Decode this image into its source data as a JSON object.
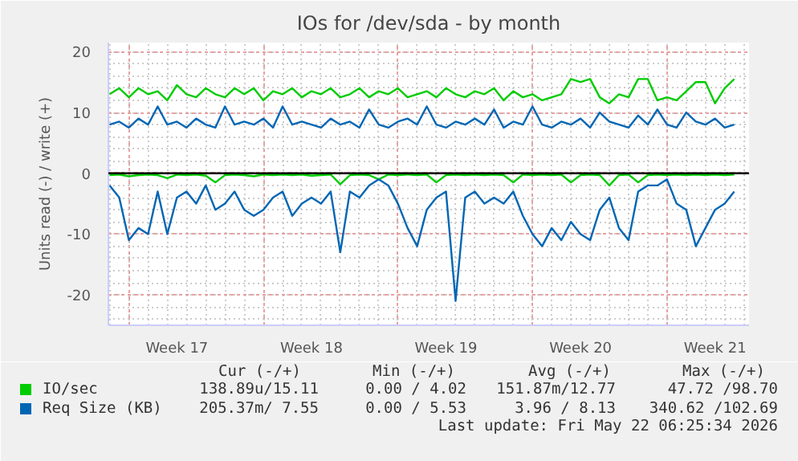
{
  "chart_data": {
    "type": "line",
    "title": "IOs for /dev/sda - by month",
    "ylabel": "Units read (-) / write (+)",
    "x": [
      "2026-04-19T00:00",
      "2026-04-19T12:00",
      "2026-04-20T00:00",
      "2026-04-20T12:00",
      "2026-04-21T00:00",
      "2026-04-21T12:00",
      "2026-04-22T00:00",
      "2026-04-22T12:00",
      "2026-04-23T00:00",
      "2026-04-23T12:00",
      "2026-04-24T00:00",
      "2026-04-24T12:00",
      "2026-04-25T00:00",
      "2026-04-25T12:00",
      "2026-04-26T00:00",
      "2026-04-26T12:00",
      "2026-04-27T00:00",
      "2026-04-27T12:00",
      "2026-04-28T00:00",
      "2026-04-28T12:00",
      "2026-04-29T00:00",
      "2026-04-29T12:00",
      "2026-04-30T00:00",
      "2026-04-30T12:00",
      "2026-05-01T00:00",
      "2026-05-01T12:00",
      "2026-05-02T00:00",
      "2026-05-02T12:00",
      "2026-05-03T00:00",
      "2026-05-03T12:00",
      "2026-05-04T00:00",
      "2026-05-04T12:00",
      "2026-05-05T00:00",
      "2026-05-05T12:00",
      "2026-05-06T00:00",
      "2026-05-06T12:00",
      "2026-05-07T00:00",
      "2026-05-07T12:00",
      "2026-05-08T00:00",
      "2026-05-08T12:00",
      "2026-05-09T00:00",
      "2026-05-09T12:00",
      "2026-05-10T00:00",
      "2026-05-10T12:00",
      "2026-05-11T00:00",
      "2026-05-11T12:00",
      "2026-05-12T00:00",
      "2026-05-12T12:00",
      "2026-05-13T00:00",
      "2026-05-13T12:00",
      "2026-05-14T00:00",
      "2026-05-14T12:00",
      "2026-05-15T00:00",
      "2026-05-15T12:00",
      "2026-05-16T00:00",
      "2026-05-16T12:00",
      "2026-05-17T00:00",
      "2026-05-17T12:00",
      "2026-05-18T00:00",
      "2026-05-18T12:00",
      "2026-05-19T00:00",
      "2026-05-19T12:00",
      "2026-05-20T00:00",
      "2026-05-20T12:00",
      "2026-05-21T00:00",
      "2026-05-21T12:00"
    ],
    "series": [
      {
        "name": "IO/sec",
        "color": "#00cc00",
        "values": [
          13,
          14,
          12.5,
          14,
          13,
          13.5,
          12,
          14.5,
          13,
          12.5,
          14,
          13,
          12.5,
          14,
          13,
          14,
          12,
          13.5,
          13,
          14,
          12.5,
          13.5,
          13,
          14,
          12.5,
          13,
          14,
          12.5,
          13.5,
          13,
          14,
          12.5,
          13,
          13.5,
          12.5,
          14,
          13,
          12.5,
          13.5,
          13,
          14,
          12,
          13.5,
          12.5,
          13,
          12,
          12.5,
          13,
          15.5,
          15,
          15.5,
          12.5,
          11.5,
          13,
          12.5,
          15.5,
          15.5,
          12,
          12.5,
          12,
          13.5,
          15,
          15,
          11.5,
          14,
          15.5
        ]
      },
      {
        "color": "#00cc00",
        "values": [
          -0.3,
          -0.2,
          -0.5,
          -0.3,
          -0.2,
          -0.3,
          -0.8,
          -0.2,
          -0.3,
          -0.2,
          -0.4,
          -1.5,
          -0.3,
          -0.2,
          -0.3,
          -0.5,
          -0.2,
          -0.3,
          -0.2,
          -0.3,
          -0.2,
          -0.4,
          -0.3,
          -0.2,
          -1.8,
          -0.3,
          -0.2,
          -0.3,
          -1,
          -0.2,
          -0.3,
          -0.2,
          -0.3,
          -0.2,
          -1.5,
          -0.3,
          -0.2,
          -0.3,
          -0.2,
          -0.3,
          -0.2,
          -0.3,
          -1.5,
          -0.2,
          -0.3,
          -0.2,
          -0.3,
          -0.2,
          -1.5,
          -0.3,
          -0.2,
          -0.3,
          -2,
          -0.3,
          -0.2,
          -1.5,
          -0.3,
          -0.2,
          -0.3,
          -0.2,
          -0.3,
          -0.2,
          -0.3,
          -0.2,
          -0.3,
          -0.2
        ]
      },
      {
        "name": "Req Size (KB)",
        "color": "#0066b3",
        "values": [
          8,
          8.5,
          7.5,
          9,
          8,
          11,
          8,
          8.5,
          7.5,
          9,
          8,
          7.5,
          11,
          8,
          8.5,
          8,
          9,
          7.5,
          11,
          8,
          8.5,
          8,
          7.5,
          9,
          8,
          8.5,
          7.5,
          10.5,
          8,
          7.5,
          8.5,
          9,
          8,
          11,
          8,
          7.5,
          8.5,
          8,
          9,
          8,
          10.5,
          7.5,
          8.5,
          8,
          11,
          8,
          7.5,
          8.5,
          8,
          9,
          7.5,
          10,
          8.5,
          8,
          7.5,
          9.5,
          8,
          10.5,
          8,
          7.5,
          10,
          8.5,
          8,
          9,
          7.5,
          8
        ]
      },
      {
        "color": "#0066b3",
        "values": [
          -2,
          -4,
          -11,
          -9,
          -10,
          -3,
          -10,
          -4,
          -3,
          -5,
          -2,
          -6,
          -5,
          -3,
          -6,
          -7,
          -6,
          -4,
          -3,
          -7,
          -5,
          -4,
          -5,
          -3,
          -13,
          -3,
          -4,
          -2,
          -1,
          -2,
          -5,
          -9,
          -12,
          -6,
          -4,
          -3,
          -21,
          -4,
          -3,
          -5,
          -4,
          -5,
          -3,
          -7,
          -10,
          -12,
          -9,
          -11,
          -8,
          -10,
          -11,
          -6,
          -4,
          -9,
          -11,
          -3,
          -2,
          -2,
          -1,
          -5,
          -6,
          -12,
          -9,
          -6,
          -5,
          -3
        ]
      }
    ],
    "xlim": [
      "2026-04-18T22:25",
      "2026-05-22T06:25"
    ],
    "xticks": [
      {
        "value": "2026-04-20T00:00",
        "label": null
      },
      {
        "value": "2026-04-22T12:00",
        "label": "Week 17"
      },
      {
        "value": "2026-04-27T00:00",
        "label": null
      },
      {
        "value": "2026-04-29T12:00",
        "label": "Week 18"
      },
      {
        "value": "2026-05-04T00:00",
        "label": null
      },
      {
        "value": "2026-05-06T12:00",
        "label": "Week 19"
      },
      {
        "value": "2026-05-11T00:00",
        "label": null
      },
      {
        "value": "2026-05-13T12:00",
        "label": "Week 20"
      },
      {
        "value": "2026-05-18T00:00",
        "label": null
      },
      {
        "value": "2026-05-20T12:00",
        "label": "Week 21"
      }
    ],
    "ylim": [
      -25,
      21.5
    ],
    "yticks": [
      -20,
      -10,
      0,
      10,
      20
    ],
    "ref_lines": [
      {
        "axis": "y",
        "value": 0,
        "color": "#000000"
      }
    ],
    "grid": true,
    "legend": "bottom",
    "line_style": "solid",
    "marker": "none",
    "annotations": [
      "  Cur (-/+)        Min (-/+)       Avg (-/+)        Max (-/+)",
      "138.89u/15.11    0.00 / 4.02  151.87m/12.77    47.72 /98.70",
      "205.37m/ 7.55    0.00 / 5.53     3.96 / 8.13  340.62 /102.69",
      "Last update: Fri May 22 06:25:34 2026"
    ]
  }
}
